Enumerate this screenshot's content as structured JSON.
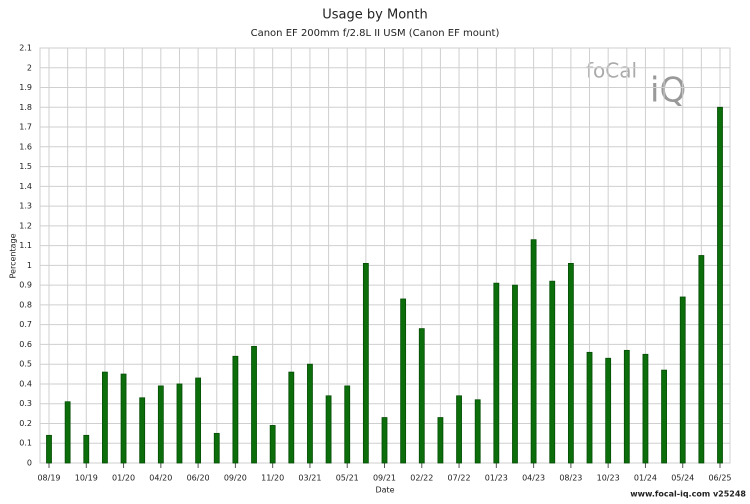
{
  "chart_data": {
    "type": "bar",
    "title": "Usage by Month",
    "subtitle": "Canon EF 200mm f/2.8L II USM (Canon EF mount)",
    "x_label": "Date",
    "y_label": "Percentage",
    "footer": "www.focal-iq.com  v25248",
    "logo": [
      "foCal",
      "iQ"
    ],
    "categories": [
      "08/19",
      null,
      "10/19",
      null,
      "01/20",
      null,
      "04/20",
      null,
      "06/20",
      null,
      "09/20",
      null,
      "11/20",
      null,
      "03/21",
      null,
      "05/21",
      null,
      "09/21",
      null,
      "02/22",
      null,
      "07/22",
      null,
      "01/23",
      null,
      "04/23",
      null,
      "08/23",
      null,
      "10/23",
      null,
      "01/24",
      null,
      "05/24",
      null,
      "06/25"
    ],
    "values": [
      0.14,
      0.31,
      0.14,
      0.46,
      0.45,
      0.33,
      0.39,
      0.4,
      0.43,
      0.15,
      0.54,
      0.59,
      0.19,
      0.46,
      0.5,
      0.34,
      0.39,
      1.01,
      0.23,
      0.83,
      0.68,
      0.23,
      0.34,
      0.32,
      0.91,
      0.9,
      1.13,
      0.92,
      1.01,
      0.56,
      0.53,
      0.57,
      0.55,
      0.47,
      0.84,
      1.05,
      1.8
    ],
    "color": "#0b6e0b",
    "ylim": [
      0,
      2.1
    ],
    "yticks": [
      0,
      0.1,
      0.2,
      0.3,
      0.4,
      0.5,
      0.6,
      0.7,
      0.8,
      0.9,
      1,
      1.1,
      1.2,
      1.3,
      1.4,
      1.5,
      1.6,
      1.7,
      1.8,
      1.9,
      2,
      2.1
    ],
    "grid": true
  }
}
